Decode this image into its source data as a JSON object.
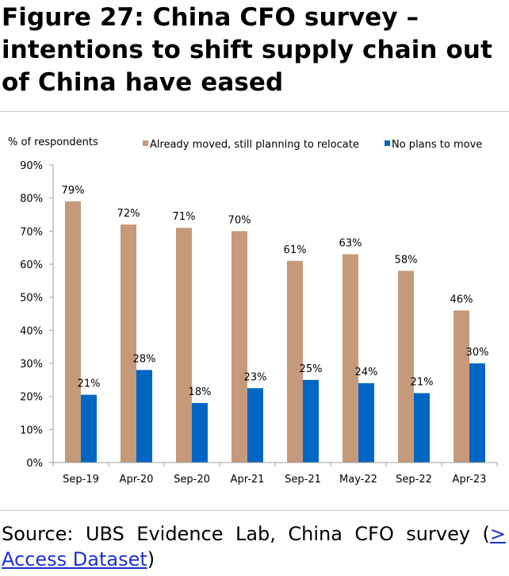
{
  "title": "Figure 27: China CFO survey – intentions to shift supply chain out of China have eased",
  "source": {
    "prefix": "Source: UBS Evidence Lab, China CFO survey (",
    "link_text": "> Access Dataset",
    "suffix": ")"
  },
  "colors": {
    "series1": "#c49a7a",
    "series2": "#0066c3",
    "axis": "#a0a0a0"
  },
  "chart_data": {
    "type": "bar",
    "title": "",
    "xlabel": "",
    "ylabel": "% of respondents",
    "ylim": [
      0,
      90
    ],
    "yticks": [
      0,
      10,
      20,
      30,
      40,
      50,
      60,
      70,
      80,
      90
    ],
    "ytick_labels": [
      "0%",
      "10%",
      "20%",
      "30%",
      "40%",
      "50%",
      "60%",
      "70%",
      "80%",
      "90%"
    ],
    "categories": [
      "Sep-19",
      "Apr-20",
      "Sep-20",
      "Apr-21",
      "Sep-21",
      "May-22",
      "Sep-22",
      "Apr-23"
    ],
    "series": [
      {
        "name": "Already moved, still planning to relocate",
        "values": [
          79,
          72,
          71,
          70,
          61,
          63,
          58,
          46
        ],
        "labels": [
          "79%",
          "72%",
          "71%",
          "70%",
          "61%",
          "63%",
          "58%",
          "46%"
        ]
      },
      {
        "name": "No plans to move",
        "values": [
          20.5,
          28,
          18,
          22.5,
          25,
          24,
          21,
          30
        ],
        "labels": [
          "21%",
          "28%",
          "18%",
          "23%",
          "25%",
          "24%",
          "21%",
          "30%"
        ]
      }
    ],
    "legend_position": "top",
    "grid": false
  }
}
